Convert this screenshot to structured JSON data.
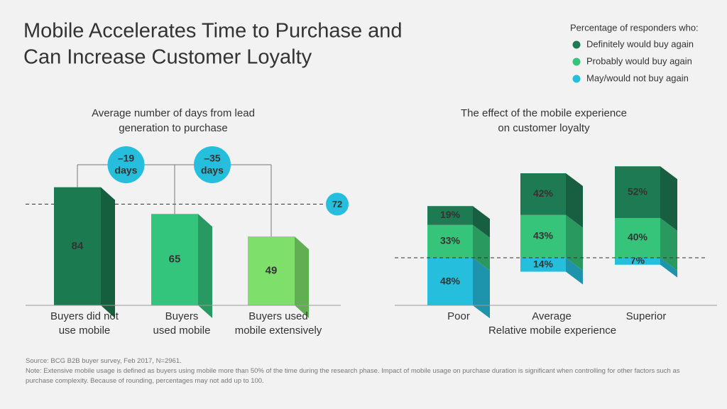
{
  "title": [
    "Mobile Accelerates Time to Purchase and",
    "Can Increase Customer Loyalty"
  ],
  "chart_data": [
    {
      "type": "bar",
      "title": [
        "Average number of days from lead",
        "generation to purchase"
      ],
      "categories": [
        [
          "Buyers did not",
          "use mobile"
        ],
        [
          "Buyers",
          "used mobile"
        ],
        [
          "Buyers  used",
          "mobile extensively"
        ]
      ],
      "values": [
        84,
        65,
        49
      ],
      "colors": [
        "#1b7a50",
        "#33c57c",
        "#7ee06a"
      ],
      "ylim": [
        0,
        100
      ],
      "reference_line": {
        "value": 72
      },
      "annotations": [
        [
          "–19",
          "days"
        ],
        [
          "–35",
          "days"
        ]
      ]
    },
    {
      "type": "stacked_bar",
      "title": [
        "The effect of the mobile experience",
        "on customer loyalty"
      ],
      "legend_title": "Percentage of responders who:",
      "categories": [
        "Poor",
        "Average",
        "Superior"
      ],
      "xlabel": "Relative mobile experience",
      "ylim": [
        0,
        100
      ],
      "series": [
        {
          "name": "Definitely would buy again",
          "color": "#1d7a52",
          "values": [
            19,
            42,
            52
          ],
          "value_labels": [
            "19%",
            "42%",
            "52%"
          ]
        },
        {
          "name": "Probably would buy again",
          "color": "#36c47b",
          "values": [
            33,
            43,
            40
          ],
          "value_labels": [
            "33%",
            "43%",
            "40%"
          ]
        },
        {
          "name": "May/would not buy again",
          "color": "#25bedc",
          "values": [
            48,
            14,
            7
          ],
          "value_labels": [
            "48%",
            "14%",
            "7%"
          ]
        }
      ]
    }
  ],
  "source": "Source: BCG B2B buyer survey, Feb 2017, N=2961.",
  "note": "Note: Extensive mobile usage is defined as buyers using mobile more than 50% of the time during the research phase. Impact of mobile usage on purchase duration is significant when controlling for other factors such as purchase complexity. Because of rounding, percentages may not add up to 100."
}
